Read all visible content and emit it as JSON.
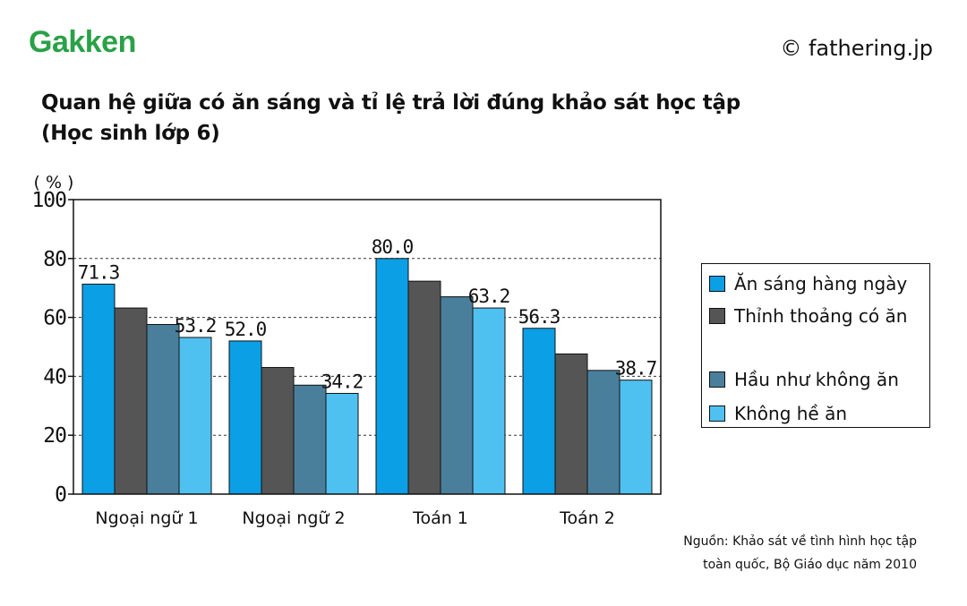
{
  "brand": {
    "logo_text": "Gakken",
    "copyright": "© fathering.jp"
  },
  "title_line1": "Quan hệ giữa có ăn sáng và tỉ lệ trả lời đúng khảo sát học tập",
  "title_line2": "(Học sinh lớp 6)",
  "source_line1": "Nguồn: Khảo sát về tình hình học tập",
  "source_line2": "toàn quốc, Bộ Giáo dục năm 2010",
  "colors": {
    "logo": "#2aa147"
  },
  "chart_data": {
    "type": "bar",
    "title": "Quan hệ giữa có ăn sáng và tỉ lệ trả lời đúng khảo sát học tập (Học sinh lớp 6)",
    "ylabel": "( % )",
    "xlabel": "",
    "ylim": [
      0,
      100
    ],
    "yticks": [
      0,
      20,
      40,
      60,
      80,
      100
    ],
    "grid": "horizontal-dashed",
    "legend_position": "right",
    "categories": [
      "Ngoại ngữ 1",
      "Ngoại ngữ 2",
      "Toán 1",
      "Toán 2"
    ],
    "series": [
      {
        "name": "Ăn sáng hàng ngày",
        "color": "#0b9fe6",
        "values": [
          71.3,
          52.0,
          80.0,
          56.3
        ]
      },
      {
        "name": "Thỉnh thoảng có ăn",
        "color": "#555555",
        "values": [
          63.2,
          43.0,
          72.3,
          47.6
        ]
      },
      {
        "name": "Hầu như không ăn",
        "color": "#4a7f9c",
        "values": [
          57.6,
          37.0,
          67.0,
          42.0
        ]
      },
      {
        "name": "Không hề ăn",
        "color": "#4fc1f1",
        "values": [
          53.2,
          34.2,
          63.2,
          38.7
        ]
      }
    ],
    "data_labels": [
      {
        "category": 0,
        "series": 0,
        "text": "71.3"
      },
      {
        "category": 0,
        "series": 3,
        "text": "53.2"
      },
      {
        "category": 1,
        "series": 0,
        "text": "52.0"
      },
      {
        "category": 1,
        "series": 3,
        "text": "34.2"
      },
      {
        "category": 2,
        "series": 0,
        "text": "80.0"
      },
      {
        "category": 2,
        "series": 3,
        "text": "63.2"
      },
      {
        "category": 3,
        "series": 0,
        "text": "56.3"
      },
      {
        "category": 3,
        "series": 3,
        "text": "38.7"
      }
    ]
  }
}
